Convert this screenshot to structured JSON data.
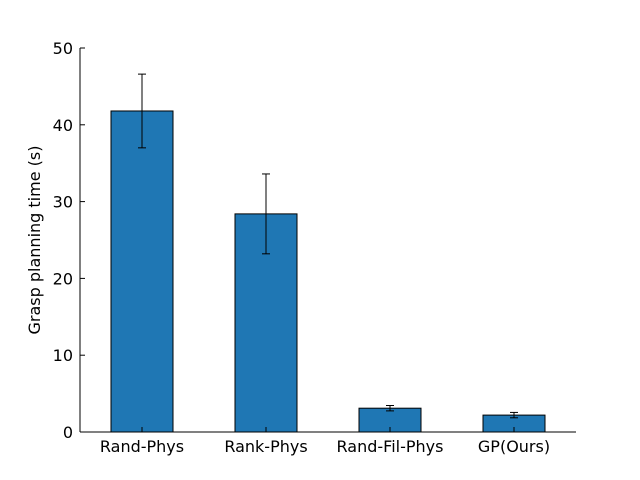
{
  "chart_data": {
    "type": "bar",
    "title": "",
    "xlabel": "",
    "ylabel": "Grasp planning time (s)",
    "categories": [
      "Rand-Phys",
      "Rank-Phys",
      "Rand-Fil-Phys",
      "GP(Ours)"
    ],
    "values": [
      41.8,
      28.4,
      3.1,
      2.2
    ],
    "errors": [
      4.8,
      5.2,
      0.35,
      0.35
    ],
    "ylim": [
      0,
      50
    ],
    "yticks": [
      0,
      10,
      20,
      30,
      40,
      50
    ],
    "grid": false,
    "legend": "none"
  },
  "colors": {
    "bar": "#1f77b4",
    "edge": "#000000",
    "axis": "#000000"
  }
}
